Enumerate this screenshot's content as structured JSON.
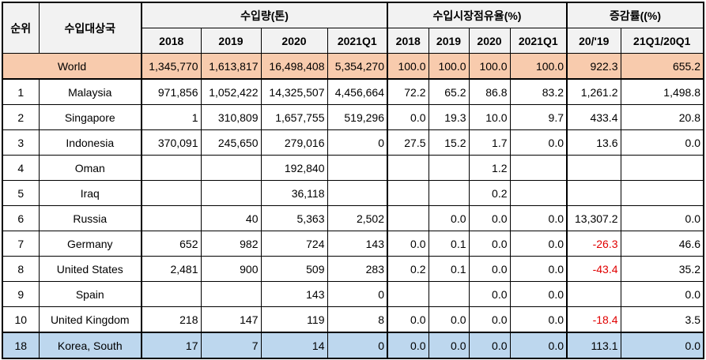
{
  "headers": {
    "rank": "순위",
    "country": "수입대상국",
    "volume_group": "수입량(톤)",
    "share_group": "수입시장점유율(%)",
    "growth_group": "증감률((%)",
    "volume_cols": [
      "2018",
      "2019",
      "2020",
      "2021Q1"
    ],
    "share_cols": [
      "2018",
      "2019",
      "2020",
      "2021Q1"
    ],
    "growth_cols": [
      "20/'19",
      "21Q1/20Q1"
    ]
  },
  "rows": [
    {
      "rank": "",
      "country": "World",
      "v": [
        "1,345,770",
        "1,613,817",
        "16,498,408",
        "5,354,270"
      ],
      "s": [
        "100.0",
        "100.0",
        "100.0",
        "100.0"
      ],
      "g": [
        "922.3",
        "655.2"
      ]
    },
    {
      "rank": "1",
      "country": "Malaysia",
      "v": [
        "971,856",
        "1,052,422",
        "14,325,507",
        "4,456,664"
      ],
      "s": [
        "72.2",
        "65.2",
        "86.8",
        "83.2"
      ],
      "g": [
        "1,261.2",
        "1,498.8"
      ]
    },
    {
      "rank": "2",
      "country": "Singapore",
      "v": [
        "1",
        "310,809",
        "1,657,755",
        "519,296"
      ],
      "s": [
        "0.0",
        "19.3",
        "10.0",
        "9.7"
      ],
      "g": [
        "433.4",
        "20.8"
      ]
    },
    {
      "rank": "3",
      "country": "Indonesia",
      "v": [
        "370,091",
        "245,650",
        "279,016",
        "0"
      ],
      "s": [
        "27.5",
        "15.2",
        "1.7",
        "0.0"
      ],
      "g": [
        "13.6",
        "0.0"
      ]
    },
    {
      "rank": "4",
      "country": "Oman",
      "v": [
        "",
        "",
        "192,840",
        ""
      ],
      "s": [
        "",
        "",
        "1.2",
        ""
      ],
      "g": [
        "",
        ""
      ]
    },
    {
      "rank": "5",
      "country": "Iraq",
      "v": [
        "",
        "",
        "36,118",
        ""
      ],
      "s": [
        "",
        "",
        "0.2",
        ""
      ],
      "g": [
        "",
        ""
      ]
    },
    {
      "rank": "6",
      "country": "Russia",
      "v": [
        "",
        "40",
        "5,363",
        "2,502"
      ],
      "s": [
        "",
        "0.0",
        "0.0",
        "0.0"
      ],
      "g": [
        "13,307.2",
        "0.0"
      ]
    },
    {
      "rank": "7",
      "country": "Germany",
      "v": [
        "652",
        "982",
        "724",
        "143"
      ],
      "s": [
        "0.0",
        "0.1",
        "0.0",
        "0.0"
      ],
      "g": [
        "-26.3",
        "46.6"
      ]
    },
    {
      "rank": "8",
      "country": "United States",
      "v": [
        "2,481",
        "900",
        "509",
        "283"
      ],
      "s": [
        "0.2",
        "0.1",
        "0.0",
        "0.0"
      ],
      "g": [
        "-43.4",
        "35.2"
      ]
    },
    {
      "rank": "9",
      "country": "Spain",
      "v": [
        "",
        "",
        "143",
        "0"
      ],
      "s": [
        "",
        "",
        "0.0",
        "0.0"
      ],
      "g": [
        "",
        "0.0"
      ]
    },
    {
      "rank": "10",
      "country": "United Kingdom",
      "v": [
        "218",
        "147",
        "119",
        "8"
      ],
      "s": [
        "0.0",
        "0.0",
        "0.0",
        "0.0"
      ],
      "g": [
        "-18.4",
        "3.5"
      ]
    },
    {
      "rank": "18",
      "country": "Korea, South",
      "v": [
        "17",
        "7",
        "14",
        "0"
      ],
      "s": [
        "0.0",
        "0.0",
        "0.0",
        "0.0"
      ],
      "g": [
        "113.1",
        "0.0"
      ]
    }
  ],
  "colors": {
    "world_row": "#f8cbad",
    "korea_row": "#bdd7ee",
    "negative": "#e00000",
    "header_bg": "#f2f2f2"
  }
}
